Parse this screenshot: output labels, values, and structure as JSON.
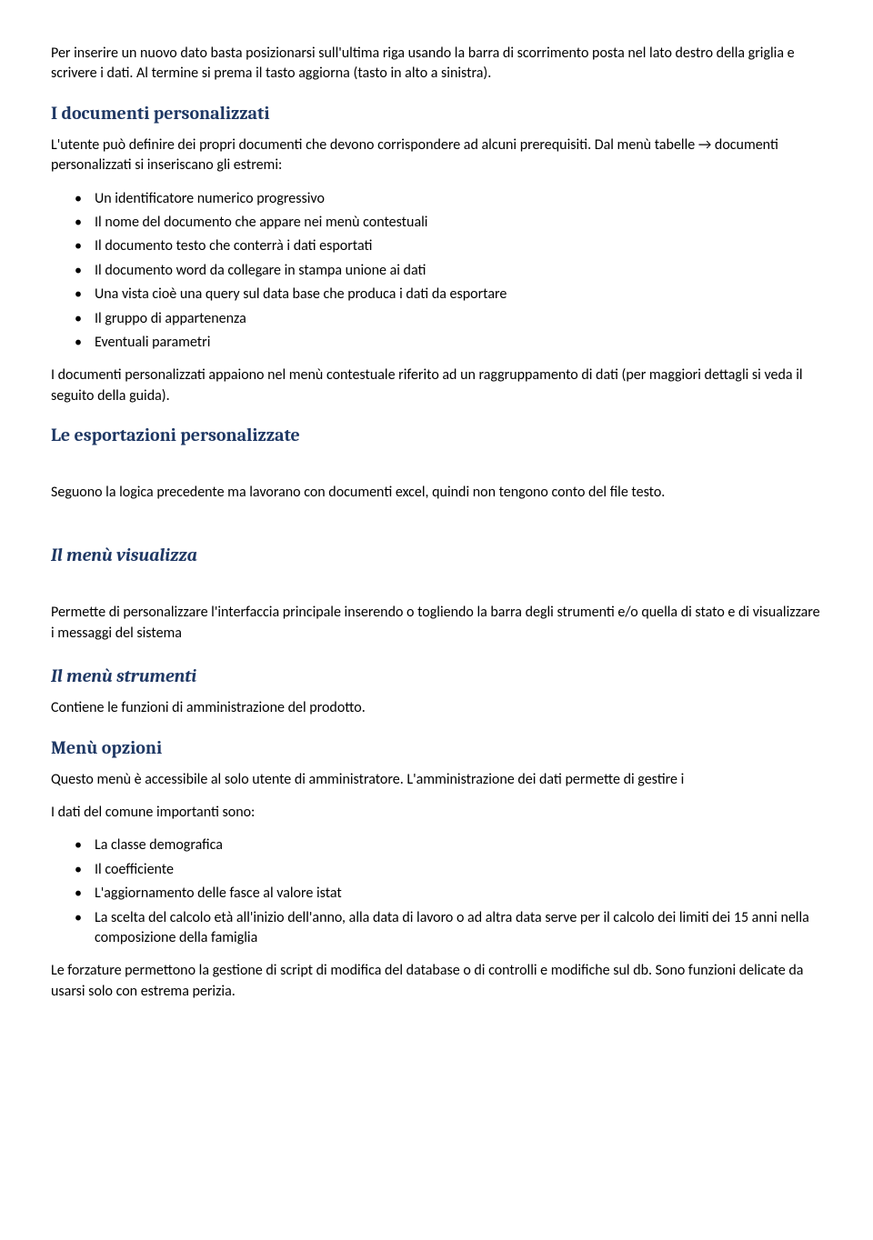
{
  "intro": {
    "p1": "Per inserire un nuovo dato basta posizionarsi sull'ultima riga usando la barra di scorrimento posta nel lato destro della griglia e scrivere i dati. Al termine si prema il tasto aggiorna (tasto in alto a sinistra)."
  },
  "section1": {
    "title": "I documenti personalizzati",
    "p1": "L'utente può definire dei propri documenti che devono corrispondere ad alcuni prerequisiti. Dal menù tabelle → documenti personalizzati si inseriscano gli estremi:",
    "items": [
      "Un identificatore numerico progressivo",
      "Il nome del documento che appare nei menù contestuali",
      "Il documento testo che conterrà i dati esportati",
      "Il documento word da collegare in stampa unione ai dati",
      "Una vista cioè una query sul data base che produca i dati da esportare",
      "Il gruppo di appartenenza",
      "Eventuali parametri"
    ],
    "p2": "I documenti personalizzati appaiono nel menù contestuale riferito ad un raggruppamento di dati (per maggiori dettagli si veda il seguito della guida)."
  },
  "section2": {
    "title": "Le esportazioni personalizzate",
    "p1": "Seguono la logica precedente ma lavorano con documenti excel, quindi non tengono conto del file testo."
  },
  "section3": {
    "title": "Il menù visualizza",
    "p1": "Permette di personalizzare l'interfaccia principale inserendo o togliendo la barra degli strumenti e/o quella di stato e di visualizzare i messaggi del sistema"
  },
  "section4": {
    "title": "Il menù strumenti",
    "p1": "Contiene le funzioni di amministrazione del prodotto."
  },
  "section5": {
    "title": "Menù opzioni",
    "p1": "Questo menù è accessibile al solo utente di amministratore. L'amministrazione dei dati permette di gestire i",
    "p2": "I dati del comune importanti sono:",
    "items": [
      "La classe demografica",
      "Il coefficiente",
      "L'aggiornamento delle fasce al valore istat",
      "La scelta del calcolo età all'inizio dell'anno, alla data di lavoro o ad altra data serve per il calcolo dei limiti dei 15 anni nella composizione della famiglia"
    ],
    "p3": "Le forzature permettono la gestione di script di modifica del database  o di controlli e modifiche sul db. Sono funzioni delicate da usarsi solo con estrema perizia."
  }
}
